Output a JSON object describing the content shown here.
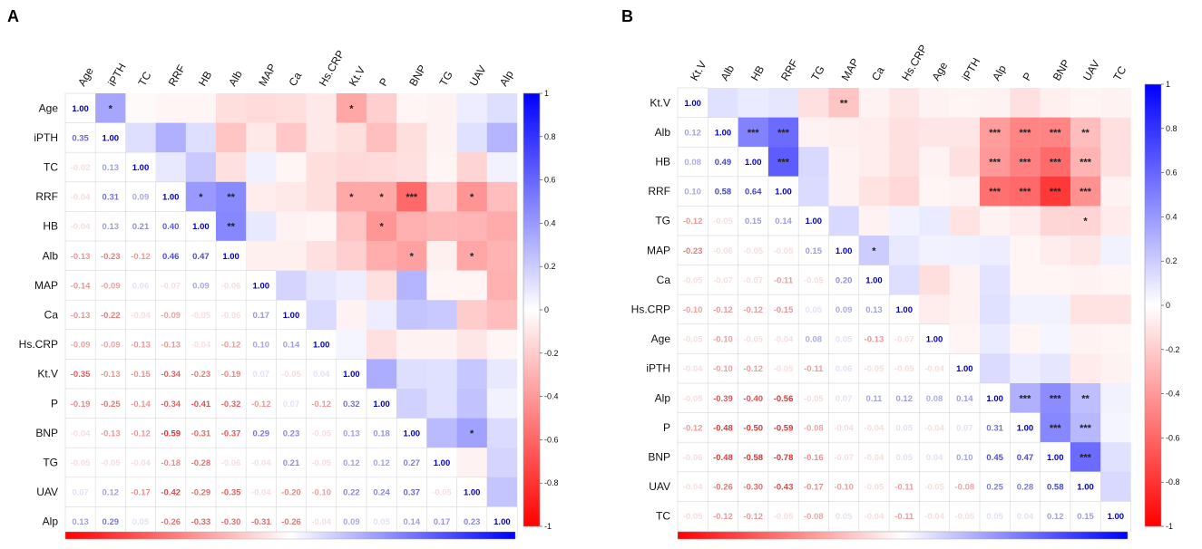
{
  "colors": {
    "negative": "#ff0000",
    "zero": "#ffffff",
    "positive": "#0000ff",
    "grid": "#d8d8d8"
  },
  "chart_data": [
    {
      "type": "heatmap",
      "panel": "A",
      "variables": [
        "Age",
        "iPTH",
        "TC",
        "RRF",
        "HB",
        "Alb",
        "MAP",
        "Ca",
        "Hs.CRP",
        "Kt.V",
        "P",
        "BNP",
        "TG",
        "UAV",
        "Alp"
      ],
      "correlations": [
        [
          1.0,
          0.35,
          -0.02,
          -0.04,
          -0.04,
          -0.13,
          -0.14,
          -0.13,
          -0.09,
          -0.35,
          -0.19,
          -0.04,
          -0.05,
          0.07,
          0.13
        ],
        [
          0.35,
          1.0,
          0.13,
          0.31,
          0.13,
          -0.23,
          -0.09,
          -0.22,
          -0.09,
          -0.13,
          -0.25,
          -0.13,
          -0.05,
          0.12,
          0.29
        ],
        [
          -0.02,
          0.13,
          1.0,
          0.09,
          0.21,
          -0.12,
          0.06,
          -0.04,
          -0.13,
          -0.15,
          -0.14,
          -0.12,
          -0.04,
          -0.17,
          0.05
        ],
        [
          -0.04,
          0.31,
          0.09,
          1.0,
          0.4,
          0.46,
          -0.07,
          -0.09,
          -0.13,
          -0.34,
          -0.34,
          -0.59,
          -0.18,
          -0.42,
          -0.26
        ],
        [
          -0.04,
          0.13,
          0.21,
          0.4,
          1.0,
          0.47,
          0.09,
          -0.05,
          -0.04,
          -0.23,
          -0.41,
          -0.31,
          -0.28,
          -0.29,
          -0.33
        ],
        [
          -0.13,
          -0.23,
          -0.12,
          0.46,
          0.47,
          1.0,
          -0.06,
          -0.06,
          -0.12,
          -0.19,
          -0.32,
          -0.37,
          -0.06,
          -0.35,
          -0.3
        ],
        [
          -0.14,
          -0.09,
          0.06,
          -0.07,
          0.09,
          -0.06,
          1.0,
          0.17,
          0.1,
          0.07,
          -0.12,
          0.29,
          -0.04,
          -0.04,
          -0.31
        ],
        [
          -0.13,
          -0.22,
          -0.04,
          -0.09,
          -0.05,
          -0.06,
          0.17,
          1.0,
          0.14,
          -0.05,
          0.07,
          0.23,
          0.21,
          -0.2,
          -0.26
        ],
        [
          -0.09,
          -0.09,
          -0.13,
          -0.13,
          -0.04,
          -0.12,
          0.1,
          0.14,
          1.0,
          0.04,
          -0.12,
          -0.05,
          -0.05,
          -0.1,
          -0.04
        ],
        [
          -0.35,
          -0.13,
          -0.15,
          -0.34,
          -0.23,
          -0.19,
          0.07,
          -0.05,
          0.04,
          1.0,
          0.32,
          0.13,
          0.12,
          0.22,
          0.09
        ],
        [
          -0.19,
          -0.25,
          -0.14,
          -0.34,
          -0.41,
          -0.32,
          -0.12,
          0.07,
          -0.12,
          0.32,
          1.0,
          0.18,
          0.12,
          0.24,
          0.05
        ],
        [
          -0.04,
          -0.13,
          -0.12,
          -0.59,
          -0.31,
          -0.37,
          0.29,
          0.23,
          -0.05,
          0.13,
          0.18,
          1.0,
          0.27,
          0.37,
          0.14
        ],
        [
          -0.05,
          -0.05,
          -0.04,
          -0.18,
          -0.28,
          -0.06,
          -0.04,
          0.21,
          -0.05,
          0.12,
          0.12,
          0.27,
          1.0,
          -0.05,
          0.17
        ],
        [
          0.07,
          0.12,
          -0.17,
          -0.42,
          -0.29,
          -0.35,
          -0.04,
          -0.2,
          -0.1,
          0.22,
          0.24,
          0.37,
          -0.05,
          1.0,
          0.23
        ],
        [
          0.13,
          0.29,
          0.05,
          -0.26,
          -0.33,
          -0.3,
          -0.31,
          -0.26,
          -0.04,
          0.09,
          0.05,
          0.14,
          0.17,
          0.23,
          1.0
        ]
      ],
      "significance": [
        [
          0,
          1,
          "*"
        ],
        [
          0,
          9,
          "*"
        ],
        [
          3,
          4,
          "*"
        ],
        [
          3,
          5,
          "**"
        ],
        [
          4,
          5,
          "**"
        ],
        [
          3,
          9,
          "*"
        ],
        [
          3,
          10,
          "*"
        ],
        [
          3,
          11,
          "***"
        ],
        [
          3,
          13,
          "*"
        ],
        [
          4,
          10,
          "*"
        ],
        [
          5,
          11,
          "*"
        ],
        [
          5,
          13,
          "*"
        ],
        [
          11,
          13,
          "*"
        ]
      ],
      "colorbar": {
        "range": [
          -1,
          1
        ],
        "ticks": [
          "1",
          "0.8",
          "0.6",
          "0.4",
          "0.2",
          "0",
          "-0.2",
          "-0.4",
          "-0.6",
          "-0.8",
          "-1"
        ]
      }
    },
    {
      "type": "heatmap",
      "panel": "B",
      "variables": [
        "Kt.V",
        "Alb",
        "HB",
        "RRF",
        "TG",
        "MAP",
        "Ca",
        "Hs.CRP",
        "Age",
        "iPTH",
        "Alp",
        "P",
        "BNP",
        "UAV",
        "TC"
      ],
      "correlations": [
        [
          1.0,
          0.12,
          0.08,
          0.1,
          -0.12,
          -0.23,
          -0.05,
          -0.1,
          -0.05,
          -0.04,
          -0.05,
          -0.12,
          -0.06,
          -0.04,
          -0.05
        ],
        [
          0.12,
          1.0,
          0.49,
          0.58,
          -0.05,
          -0.06,
          -0.07,
          -0.12,
          -0.1,
          -0.1,
          -0.39,
          -0.48,
          -0.48,
          -0.26,
          -0.12
        ],
        [
          0.08,
          0.49,
          1.0,
          0.64,
          0.15,
          -0.05,
          -0.07,
          -0.12,
          -0.05,
          -0.12,
          -0.4,
          -0.5,
          -0.58,
          -0.3,
          -0.12
        ],
        [
          0.1,
          0.58,
          0.64,
          1.0,
          0.14,
          -0.05,
          -0.11,
          -0.15,
          -0.04,
          -0.05,
          -0.56,
          -0.59,
          -0.78,
          -0.43,
          -0.05
        ],
        [
          -0.12,
          -0.05,
          0.15,
          0.14,
          1.0,
          0.15,
          -0.05,
          0.05,
          0.08,
          -0.11,
          -0.05,
          -0.08,
          -0.16,
          -0.17,
          -0.08
        ],
        [
          -0.23,
          -0.06,
          -0.05,
          -0.05,
          0.15,
          1.0,
          0.2,
          0.09,
          0.05,
          0.06,
          0.07,
          -0.04,
          -0.07,
          -0.1,
          0.05
        ],
        [
          -0.05,
          -0.07,
          -0.07,
          -0.11,
          -0.05,
          0.2,
          1.0,
          0.13,
          -0.13,
          -0.05,
          0.11,
          -0.04,
          -0.04,
          -0.05,
          -0.04
        ],
        [
          -0.1,
          -0.12,
          -0.12,
          -0.15,
          0.05,
          0.09,
          0.13,
          1.0,
          -0.07,
          -0.05,
          0.12,
          0.05,
          0.05,
          -0.11,
          -0.11
        ],
        [
          -0.05,
          -0.1,
          -0.05,
          -0.04,
          0.08,
          0.05,
          -0.13,
          -0.07,
          1.0,
          -0.04,
          0.08,
          -0.04,
          0.04,
          -0.05,
          -0.04
        ],
        [
          -0.04,
          -0.1,
          -0.12,
          -0.05,
          -0.11,
          0.06,
          -0.05,
          -0.05,
          -0.04,
          1.0,
          0.14,
          0.07,
          0.1,
          -0.08,
          -0.05
        ],
        [
          -0.05,
          -0.39,
          -0.4,
          -0.56,
          -0.05,
          0.07,
          0.11,
          0.12,
          0.08,
          0.14,
          1.0,
          0.31,
          0.45,
          0.25,
          0.05
        ],
        [
          -0.12,
          -0.48,
          -0.5,
          -0.59,
          -0.08,
          -0.04,
          -0.04,
          0.05,
          -0.04,
          0.07,
          0.31,
          1.0,
          0.47,
          0.28,
          0.04
        ],
        [
          -0.06,
          -0.48,
          -0.58,
          -0.78,
          -0.16,
          -0.07,
          -0.04,
          0.05,
          0.04,
          0.1,
          0.45,
          0.47,
          1.0,
          0.58,
          0.12
        ],
        [
          -0.04,
          -0.26,
          -0.3,
          -0.43,
          -0.17,
          -0.1,
          -0.05,
          -0.11,
          -0.05,
          -0.08,
          0.25,
          0.28,
          0.58,
          1.0,
          0.15
        ],
        [
          -0.05,
          -0.12,
          -0.12,
          -0.05,
          -0.08,
          0.05,
          -0.04,
          -0.11,
          -0.04,
          -0.05,
          0.05,
          0.04,
          0.12,
          0.15,
          1.0
        ]
      ],
      "significance": [
        [
          0,
          5,
          "**"
        ],
        [
          1,
          2,
          "***"
        ],
        [
          1,
          3,
          "***"
        ],
        [
          2,
          3,
          "***"
        ],
        [
          5,
          6,
          "*"
        ],
        [
          1,
          10,
          "***"
        ],
        [
          1,
          11,
          "***"
        ],
        [
          1,
          12,
          "***"
        ],
        [
          1,
          13,
          "**"
        ],
        [
          2,
          10,
          "***"
        ],
        [
          2,
          11,
          "***"
        ],
        [
          2,
          12,
          "***"
        ],
        [
          2,
          13,
          "***"
        ],
        [
          3,
          10,
          "***"
        ],
        [
          3,
          11,
          "***"
        ],
        [
          3,
          12,
          "***"
        ],
        [
          3,
          13,
          "***"
        ],
        [
          4,
          13,
          "*"
        ],
        [
          10,
          11,
          "***"
        ],
        [
          10,
          12,
          "***"
        ],
        [
          10,
          13,
          "**"
        ],
        [
          11,
          12,
          "***"
        ],
        [
          11,
          13,
          "***"
        ],
        [
          12,
          13,
          "***"
        ]
      ],
      "colorbar": {
        "range": [
          -1,
          1
        ],
        "ticks": [
          "1",
          "0.8",
          "0.6",
          "0.4",
          "0.2",
          "0",
          "-0.2",
          "-0.4",
          "-0.6",
          "-0.8",
          "-1"
        ]
      }
    }
  ]
}
